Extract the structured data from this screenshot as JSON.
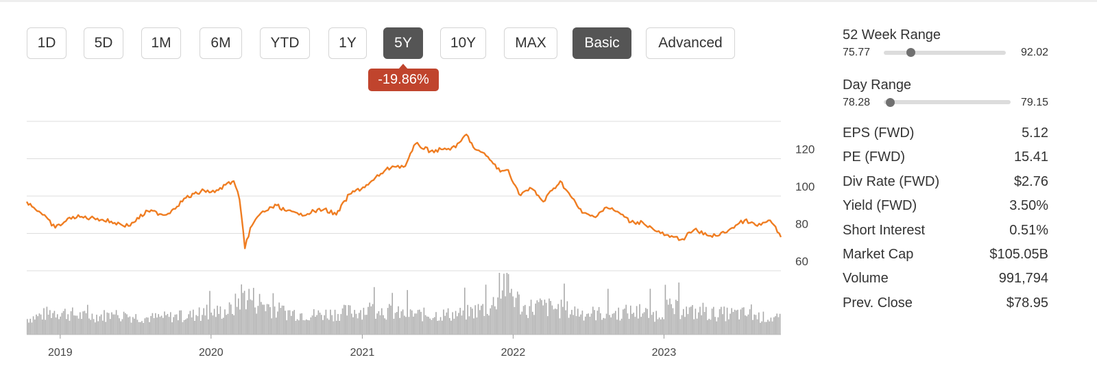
{
  "range_buttons": [
    {
      "label": "1D",
      "active": false
    },
    {
      "label": "5D",
      "active": false
    },
    {
      "label": "1M",
      "active": false
    },
    {
      "label": "6M",
      "active": false
    },
    {
      "label": "YTD",
      "active": false
    },
    {
      "label": "1Y",
      "active": false
    },
    {
      "label": "5Y",
      "active": true
    },
    {
      "label": "10Y",
      "active": false
    },
    {
      "label": "MAX",
      "active": false
    }
  ],
  "mode_buttons": [
    {
      "label": "Basic",
      "active": true
    },
    {
      "label": "Advanced",
      "active": false
    }
  ],
  "change_badge": "-19.86%",
  "colors": {
    "price_line": "#ef7d22",
    "volume_bars": "#aaaaaa",
    "badge": "#c0442d",
    "active_button": "#555555"
  },
  "stats": {
    "week52": {
      "title": "52 Week Range",
      "low": "75.77",
      "high": "92.02",
      "position": 0.22
    },
    "day": {
      "title": "Day Range",
      "low": "78.28",
      "high": "79.15",
      "position": 0.05
    },
    "rows": [
      {
        "label": "EPS (FWD)",
        "value": "5.12"
      },
      {
        "label": "PE (FWD)",
        "value": "15.41"
      },
      {
        "label": "Div Rate (FWD)",
        "value": "$2.76"
      },
      {
        "label": "Yield (FWD)",
        "value": "3.50%"
      },
      {
        "label": "Short Interest",
        "value": "0.51%"
      },
      {
        "label": "Market Cap",
        "value": "$105.05B"
      },
      {
        "label": "Volume",
        "value": "991,794"
      },
      {
        "label": "Prev. Close",
        "value": "$78.95"
      }
    ]
  },
  "chart_data": {
    "type": "line",
    "title": "",
    "xlabel": "",
    "ylabel": "",
    "x_ticks": [
      "2019",
      "2020",
      "2021",
      "2022",
      "2023"
    ],
    "x_tick_dates": [
      "2019-01-01",
      "2020-01-01",
      "2021-01-01",
      "2022-01-01",
      "2023-01-01"
    ],
    "x_range": [
      "2018-10-12",
      "2023-10-11"
    ],
    "y_ticks": [
      60,
      80,
      100,
      120
    ],
    "ylim": [
      60,
      140
    ],
    "grid": true,
    "series": [
      {
        "x": [
          "2018-10-12",
          "2018-11-15",
          "2018-12-20",
          "2019-02-01",
          "2019-04-01",
          "2019-06-15",
          "2019-08-01",
          "2019-09-15",
          "2019-11-01",
          "2019-12-15",
          "2020-01-10",
          "2020-02-05",
          "2020-02-25",
          "2020-03-10",
          "2020-03-23",
          "2020-04-05",
          "2020-05-01",
          "2020-06-08",
          "2020-07-01",
          "2020-08-01",
          "2020-10-01",
          "2020-10-30",
          "2020-12-01",
          "2021-01-15",
          "2021-02-15",
          "2021-03-15",
          "2021-04-15",
          "2021-05-10",
          "2021-06-15",
          "2021-07-15",
          "2021-08-15",
          "2021-09-10",
          "2021-10-01",
          "2021-11-01",
          "2021-12-01",
          "2021-12-20",
          "2022-01-15",
          "2022-02-15",
          "2022-03-15",
          "2022-04-05",
          "2022-04-25",
          "2022-05-20",
          "2022-06-17",
          "2022-07-15",
          "2022-08-15",
          "2022-09-15",
          "2022-10-13",
          "2022-11-10",
          "2022-12-15",
          "2023-01-15",
          "2023-02-15",
          "2023-03-15",
          "2023-04-15",
          "2023-05-15",
          "2023-06-15",
          "2023-07-15",
          "2023-08-15",
          "2023-09-15",
          "2023-10-11"
        ],
        "y": [
          97,
          91,
          83,
          89,
          88,
          84,
          92,
          90,
          99,
          103,
          102,
          106,
          108,
          98,
          72,
          83,
          91,
          95,
          92,
          90,
          93,
          90,
          101,
          106,
          112,
          116,
          116,
          128,
          124,
          125,
          126,
          133,
          125,
          121,
          113,
          114,
          101,
          104,
          97,
          103,
          108,
          100,
          91,
          89,
          94,
          91,
          86,
          86,
          81,
          78,
          77,
          82,
          79,
          79,
          83,
          87,
          84,
          87,
          78
        ]
      }
    ],
    "volume": {
      "ylim": [
        0,
        100
      ],
      "x": [
        "2018-10-12",
        "2018-12-20",
        "2019-03-01",
        "2019-05-15",
        "2019-08-01",
        "2019-10-15",
        "2019-12-20",
        "2020-02-20",
        "2020-03-16",
        "2020-04-20",
        "2020-06-15",
        "2020-09-01",
        "2020-11-10",
        "2021-01-28",
        "2021-04-01",
        "2021-06-15",
        "2021-09-01",
        "2021-11-10",
        "2021-12-08",
        "2022-01-25",
        "2022-03-01",
        "2022-05-10",
        "2022-06-20",
        "2022-08-15",
        "2022-10-15",
        "2022-12-15",
        "2023-01-05",
        "2023-03-20",
        "2023-05-10",
        "2023-07-15",
        "2023-08-20",
        "2023-10-11"
      ],
      "values": [
        20,
        35,
        25,
        28,
        22,
        25,
        30,
        38,
        70,
        55,
        35,
        28,
        32,
        40,
        30,
        28,
        30,
        45,
        95,
        40,
        45,
        38,
        32,
        30,
        34,
        28,
        42,
        32,
        30,
        30,
        24,
        20
      ]
    }
  }
}
